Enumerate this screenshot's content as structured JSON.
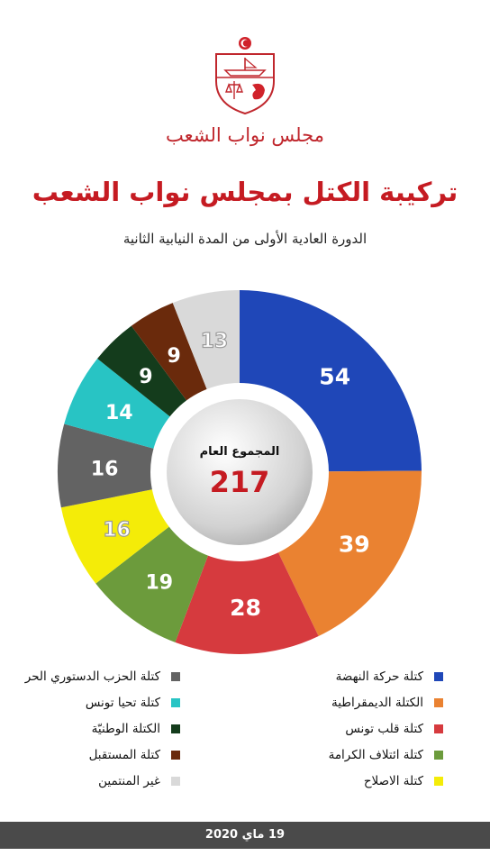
{
  "header": {
    "institution_name": "مجلس نواب الشعب",
    "emblem_icon": "tunisian-parliament-emblem"
  },
  "colors": {
    "title": "#c51b22",
    "institution": "#c0272d",
    "footer_bg": "#4a4a4a"
  },
  "chart_data": {
    "type": "pie",
    "style": "donut",
    "title": "تركيبة الكتل بمجلس نواب الشعب",
    "subtitle": "الدورة العادية الأولى من المدة النيابية الثانية",
    "center_label": "المجموع العام",
    "total": "217",
    "slices": [
      {
        "label": "كتلة حركة النهضة",
        "value": 54,
        "color": "#1f47b8"
      },
      {
        "label": "الكتلة الديمقراطية",
        "value": 39,
        "color": "#ea8231"
      },
      {
        "label": "كتلة قلب تونس",
        "value": 28,
        "color": "#d63a3e"
      },
      {
        "label": "كتلة ائتلاف الكرامة",
        "value": 19,
        "color": "#6c9b3c"
      },
      {
        "label": "كتلة الاصلاح",
        "value": 16,
        "color": "#f4ec08"
      },
      {
        "label": "كتلة الحزب الدستوري الحر",
        "value": 16,
        "color": "#636363"
      },
      {
        "label": "كتلة تحيا تونس",
        "value": 14,
        "color": "#28c4c4"
      },
      {
        "label": "الكتلة الوطنيّة",
        "value": 9,
        "color": "#143c1c"
      },
      {
        "label": "كتلة المستقبل",
        "value": 9,
        "color": "#6a2a0c"
      },
      {
        "label": "غير المنتمين",
        "value": 13,
        "color": "#d9d9d9"
      }
    ],
    "legend_placement": "bottom"
  },
  "footer": {
    "date": "19 ماي 2020"
  }
}
